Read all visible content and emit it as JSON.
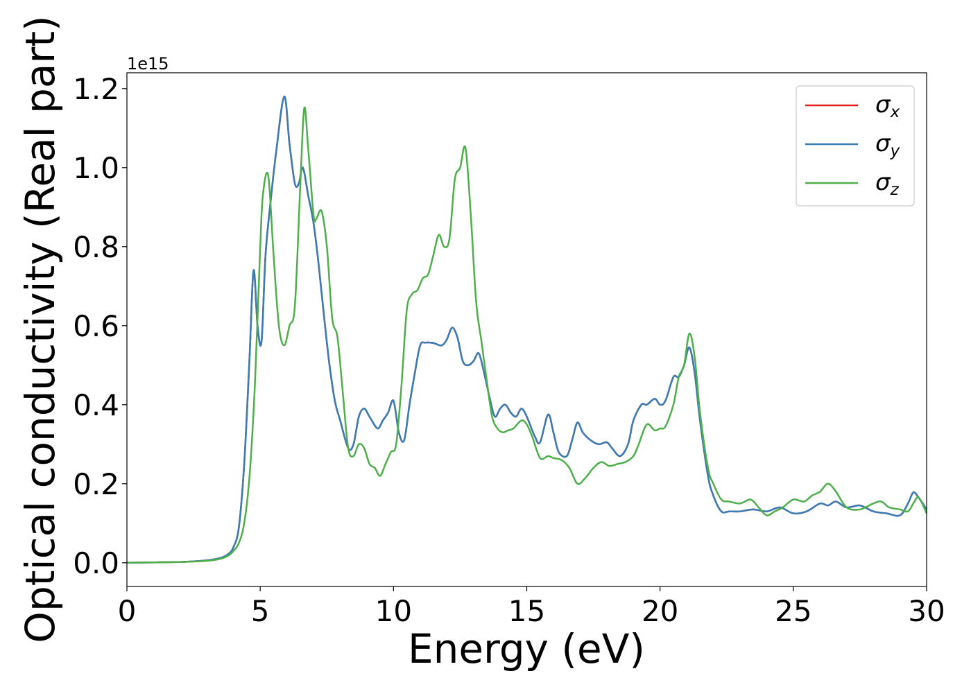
{
  "chart_data": {
    "type": "line",
    "xlabel": "Energy (eV)",
    "ylabel": "Optical conductivity (Real part)",
    "y_offset_label": "1e15",
    "y_scale_factor": 1000000000000000.0,
    "xlim": [
      0,
      30
    ],
    "ylim": [
      -0.06,
      1.24
    ],
    "x_ticks": [
      0,
      5,
      10,
      15,
      20,
      25,
      30
    ],
    "x_tick_labels": [
      "0",
      "5",
      "10",
      "15",
      "20",
      "25",
      "30"
    ],
    "y_ticks": [
      0.0,
      0.2,
      0.4,
      0.6,
      0.8,
      1.0,
      1.2
    ],
    "y_tick_labels": [
      "0.0",
      "0.2",
      "0.4",
      "0.6",
      "0.8",
      "1.0",
      "1.2"
    ],
    "grid": false,
    "legend_position": "top-right",
    "series": [
      {
        "name": "σ_x",
        "legend_symbol": "σ",
        "legend_sub": "x",
        "color": "#e41a1c",
        "x": [
          0,
          2,
          3,
          3.5,
          3.8,
          4.0,
          4.2,
          4.4,
          4.6,
          4.75,
          4.9,
          5.05,
          5.2,
          5.4,
          5.6,
          5.9,
          6.1,
          6.3,
          6.45,
          6.6,
          6.8,
          7.0,
          7.2,
          7.4,
          7.6,
          7.8,
          8.0,
          8.3,
          8.5,
          8.7,
          8.9,
          9.1,
          9.4,
          9.6,
          9.8,
          10.0,
          10.2,
          10.4,
          10.6,
          10.8,
          11.0,
          11.2,
          11.5,
          11.8,
          12.0,
          12.2,
          12.4,
          12.6,
          12.8,
          13.0,
          13.2,
          13.4,
          13.6,
          13.8,
          14.0,
          14.2,
          14.4,
          14.6,
          14.8,
          15.0,
          15.3,
          15.5,
          15.8,
          16.0,
          16.2,
          16.5,
          16.7,
          16.9,
          17.1,
          17.4,
          17.7,
          18.0,
          18.2,
          18.5,
          18.8,
          19.0,
          19.3,
          19.5,
          19.8,
          20.0,
          20.2,
          20.5,
          20.7,
          20.9,
          21.1,
          21.3,
          21.5,
          21.8,
          22.0,
          22.3,
          22.6,
          23.0,
          23.5,
          24.0,
          24.5,
          25.0,
          25.5,
          26.0,
          26.3,
          26.6,
          27.0,
          27.5,
          28.0,
          28.5,
          29.0,
          29.3,
          29.5,
          29.7,
          30.0
        ],
        "y": [
          0.0,
          0.002,
          0.006,
          0.012,
          0.022,
          0.04,
          0.09,
          0.25,
          0.52,
          0.74,
          0.6,
          0.56,
          0.78,
          0.92,
          1.04,
          1.18,
          1.06,
          0.96,
          0.96,
          1.0,
          0.93,
          0.86,
          0.75,
          0.62,
          0.5,
          0.41,
          0.36,
          0.29,
          0.3,
          0.37,
          0.39,
          0.37,
          0.34,
          0.36,
          0.38,
          0.41,
          0.33,
          0.31,
          0.4,
          0.48,
          0.55,
          0.557,
          0.556,
          0.55,
          0.565,
          0.595,
          0.57,
          0.51,
          0.5,
          0.51,
          0.53,
          0.48,
          0.42,
          0.37,
          0.39,
          0.4,
          0.38,
          0.37,
          0.39,
          0.37,
          0.32,
          0.305,
          0.375,
          0.33,
          0.28,
          0.27,
          0.31,
          0.355,
          0.33,
          0.31,
          0.3,
          0.305,
          0.29,
          0.27,
          0.3,
          0.36,
          0.4,
          0.4,
          0.415,
          0.4,
          0.41,
          0.47,
          0.47,
          0.5,
          0.545,
          0.48,
          0.36,
          0.22,
          0.17,
          0.13,
          0.13,
          0.13,
          0.135,
          0.13,
          0.14,
          0.125,
          0.13,
          0.15,
          0.145,
          0.155,
          0.14,
          0.145,
          0.13,
          0.125,
          0.12,
          0.15,
          0.178,
          0.165,
          0.135
        ]
      },
      {
        "name": "σ_y",
        "legend_symbol": "σ",
        "legend_sub": "y",
        "color": "#377eb8",
        "x": [
          0,
          2,
          3,
          3.5,
          3.8,
          4.0,
          4.2,
          4.4,
          4.6,
          4.75,
          4.9,
          5.05,
          5.2,
          5.4,
          5.6,
          5.9,
          6.1,
          6.3,
          6.45,
          6.6,
          6.8,
          7.0,
          7.2,
          7.4,
          7.6,
          7.8,
          8.0,
          8.3,
          8.5,
          8.7,
          8.9,
          9.1,
          9.4,
          9.6,
          9.8,
          10.0,
          10.2,
          10.4,
          10.6,
          10.8,
          11.0,
          11.2,
          11.5,
          11.8,
          12.0,
          12.2,
          12.4,
          12.6,
          12.8,
          13.0,
          13.2,
          13.4,
          13.6,
          13.8,
          14.0,
          14.2,
          14.4,
          14.6,
          14.8,
          15.0,
          15.3,
          15.5,
          15.8,
          16.0,
          16.2,
          16.5,
          16.7,
          16.9,
          17.1,
          17.4,
          17.7,
          18.0,
          18.2,
          18.5,
          18.8,
          19.0,
          19.3,
          19.5,
          19.8,
          20.0,
          20.2,
          20.5,
          20.7,
          20.9,
          21.1,
          21.3,
          21.5,
          21.8,
          22.0,
          22.3,
          22.6,
          23.0,
          23.5,
          24.0,
          24.5,
          25.0,
          25.5,
          26.0,
          26.3,
          26.6,
          27.0,
          27.5,
          28.0,
          28.5,
          29.0,
          29.3,
          29.5,
          29.7,
          30.0
        ],
        "y": [
          0.0,
          0.002,
          0.006,
          0.012,
          0.022,
          0.04,
          0.09,
          0.25,
          0.52,
          0.74,
          0.6,
          0.56,
          0.78,
          0.92,
          1.04,
          1.18,
          1.06,
          0.96,
          0.96,
          1.0,
          0.93,
          0.86,
          0.75,
          0.62,
          0.5,
          0.41,
          0.36,
          0.29,
          0.3,
          0.37,
          0.39,
          0.37,
          0.34,
          0.36,
          0.38,
          0.41,
          0.33,
          0.31,
          0.4,
          0.48,
          0.55,
          0.557,
          0.556,
          0.55,
          0.565,
          0.595,
          0.57,
          0.51,
          0.5,
          0.51,
          0.53,
          0.48,
          0.42,
          0.37,
          0.39,
          0.4,
          0.38,
          0.37,
          0.39,
          0.37,
          0.32,
          0.305,
          0.375,
          0.33,
          0.28,
          0.27,
          0.31,
          0.355,
          0.33,
          0.31,
          0.3,
          0.305,
          0.29,
          0.27,
          0.3,
          0.36,
          0.4,
          0.4,
          0.415,
          0.4,
          0.41,
          0.47,
          0.47,
          0.5,
          0.545,
          0.48,
          0.36,
          0.22,
          0.17,
          0.13,
          0.13,
          0.13,
          0.135,
          0.13,
          0.14,
          0.125,
          0.13,
          0.15,
          0.145,
          0.155,
          0.14,
          0.145,
          0.13,
          0.125,
          0.12,
          0.15,
          0.178,
          0.165,
          0.135
        ]
      },
      {
        "name": "σ_z",
        "legend_symbol": "σ",
        "legend_sub": "z",
        "color": "#4daf4a",
        "x": [
          0,
          2,
          3,
          3.5,
          3.8,
          4.0,
          4.2,
          4.4,
          4.6,
          4.8,
          5.0,
          5.1,
          5.3,
          5.5,
          5.7,
          5.9,
          6.1,
          6.3,
          6.5,
          6.65,
          6.8,
          7.0,
          7.1,
          7.3,
          7.5,
          7.7,
          7.9,
          8.1,
          8.3,
          8.5,
          8.7,
          8.9,
          9.1,
          9.3,
          9.5,
          9.7,
          9.9,
          10.1,
          10.3,
          10.5,
          10.7,
          10.9,
          11.1,
          11.3,
          11.5,
          11.7,
          11.9,
          12.1,
          12.3,
          12.5,
          12.7,
          12.9,
          13.1,
          13.3,
          13.5,
          13.7,
          13.9,
          14.1,
          14.3,
          14.5,
          14.8,
          15.0,
          15.2,
          15.5,
          15.8,
          16.0,
          16.3,
          16.6,
          16.9,
          17.2,
          17.5,
          17.8,
          18.1,
          18.4,
          18.7,
          19.0,
          19.2,
          19.5,
          19.8,
          20.0,
          20.2,
          20.5,
          20.7,
          20.9,
          21.1,
          21.3,
          21.5,
          21.8,
          22.0,
          22.3,
          22.6,
          23.0,
          23.4,
          23.7,
          24.0,
          24.3,
          24.6,
          25.0,
          25.4,
          25.7,
          26.0,
          26.3,
          26.6,
          27.0,
          27.5,
          28.0,
          28.3,
          28.6,
          29.0,
          29.3,
          29.5,
          29.7,
          30.0
        ],
        "y": [
          0.0,
          0.002,
          0.005,
          0.01,
          0.018,
          0.03,
          0.05,
          0.1,
          0.22,
          0.45,
          0.8,
          0.93,
          0.98,
          0.78,
          0.6,
          0.55,
          0.6,
          0.65,
          0.95,
          1.15,
          1.05,
          0.88,
          0.87,
          0.89,
          0.8,
          0.62,
          0.57,
          0.43,
          0.29,
          0.27,
          0.3,
          0.29,
          0.25,
          0.24,
          0.22,
          0.25,
          0.28,
          0.3,
          0.45,
          0.64,
          0.68,
          0.69,
          0.72,
          0.73,
          0.78,
          0.83,
          0.8,
          0.82,
          0.97,
          1.0,
          1.05,
          0.88,
          0.66,
          0.56,
          0.46,
          0.37,
          0.34,
          0.33,
          0.335,
          0.34,
          0.36,
          0.35,
          0.32,
          0.265,
          0.27,
          0.265,
          0.26,
          0.24,
          0.2,
          0.215,
          0.24,
          0.255,
          0.245,
          0.25,
          0.255,
          0.27,
          0.3,
          0.35,
          0.335,
          0.34,
          0.345,
          0.4,
          0.47,
          0.5,
          0.58,
          0.52,
          0.38,
          0.24,
          0.2,
          0.16,
          0.155,
          0.15,
          0.16,
          0.14,
          0.12,
          0.13,
          0.14,
          0.16,
          0.155,
          0.17,
          0.18,
          0.2,
          0.18,
          0.14,
          0.135,
          0.15,
          0.155,
          0.14,
          0.135,
          0.13,
          0.15,
          0.165,
          0.125
        ]
      }
    ]
  }
}
